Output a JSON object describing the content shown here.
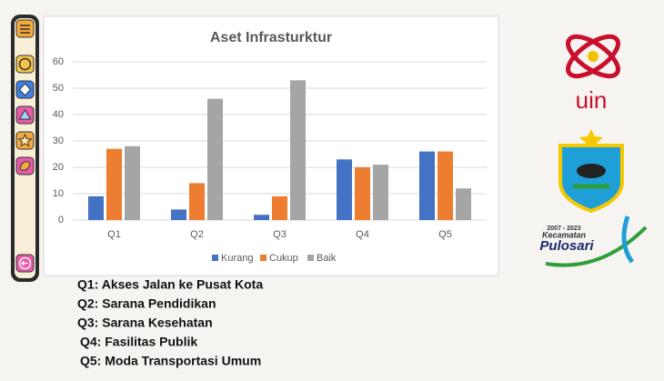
{
  "chart_data": {
    "type": "bar",
    "title": "Aset Infrasturktur",
    "categories": [
      "Q1",
      "Q2",
      "Q3",
      "Q4",
      "Q5"
    ],
    "series": [
      {
        "name": "Kurang",
        "color": "#4472c4",
        "values": [
          9,
          4,
          2,
          23,
          26
        ]
      },
      {
        "name": "Cukup",
        "color": "#ed7d31",
        "values": [
          27,
          14,
          9,
          20,
          26
        ]
      },
      {
        "name": "Baik",
        "color": "#a5a5a5",
        "values": [
          28,
          46,
          53,
          21,
          12
        ]
      }
    ],
    "ylim": [
      0,
      60
    ],
    "yticks": [
      0,
      10,
      20,
      30,
      40,
      50,
      60
    ],
    "grid": true,
    "legend": "bottom"
  },
  "notes": [
    "Q1: Akses Jalan ke Pusat Kota",
    "Q2: Sarana Pendidikan",
    "Q3: Sarana Kesehatan",
    "Q4: Fasilitas Publik",
    "Q5: Moda Transportasi Umum"
  ],
  "logos": {
    "uin": "uin",
    "pulosari": [
      "2007 - 2023",
      "Kecamatan",
      "Pulosari"
    ]
  }
}
